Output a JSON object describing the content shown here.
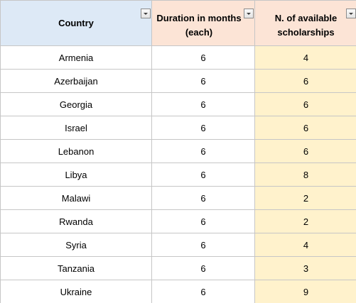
{
  "table": {
    "headers": {
      "country": "Country",
      "duration_line1": "Duration in months",
      "duration_line2": "(each)",
      "scholarships_line1": "N. of available",
      "scholarships_line2": "scholarships"
    },
    "rows": [
      {
        "country": "Armenia",
        "duration": "6",
        "scholarships": "4"
      },
      {
        "country": "Azerbaijan",
        "duration": "6",
        "scholarships": "6"
      },
      {
        "country": "Georgia",
        "duration": "6",
        "scholarships": "6"
      },
      {
        "country": "Israel",
        "duration": "6",
        "scholarships": "6"
      },
      {
        "country": "Lebanon",
        "duration": "6",
        "scholarships": "6"
      },
      {
        "country": "Libya",
        "duration": "6",
        "scholarships": "8"
      },
      {
        "country": "Malawi",
        "duration": "6",
        "scholarships": "2"
      },
      {
        "country": "Rwanda",
        "duration": "6",
        "scholarships": "2"
      },
      {
        "country": "Syria",
        "duration": "6",
        "scholarships": "4"
      },
      {
        "country": "Tanzania",
        "duration": "6",
        "scholarships": "3"
      },
      {
        "country": "Ukraine",
        "duration": "6",
        "scholarships": "9"
      }
    ]
  },
  "icons": {
    "filter": "filter-dropdown-icon"
  },
  "colors": {
    "header_country_bg": "#dde9f6",
    "header_other_bg": "#fce4d6",
    "scholarships_col_bg": "#fff2cc",
    "gridline": "#c6c6c6"
  }
}
